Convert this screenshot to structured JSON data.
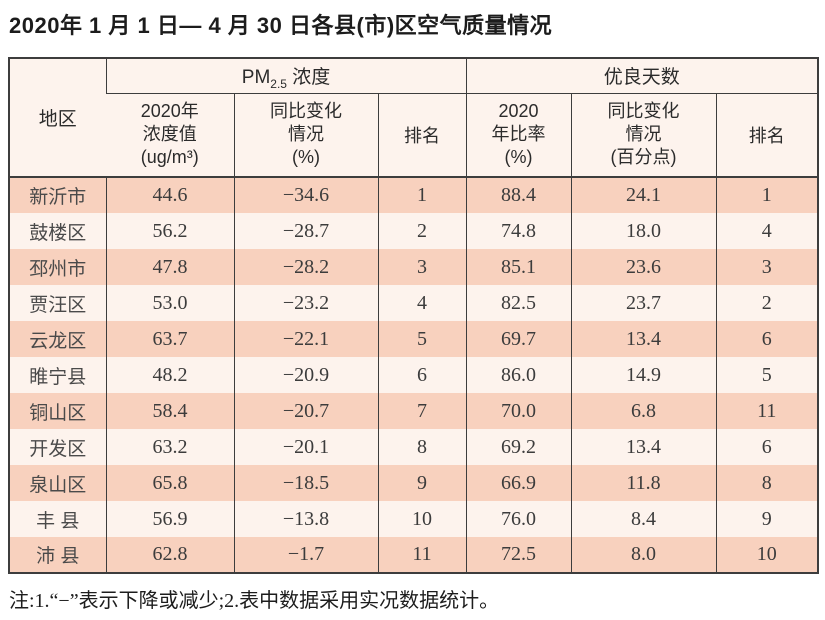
{
  "title": "2020年 1 月 1 日— 4 月 30 日各县(市)区空气质量情况",
  "note": "注:1.“−”表示下降或减少;2.表中数据采用实况数据统计。",
  "colors": {
    "row_salmon": "#f8d1be",
    "row_cream": "#fdf3ed",
    "border_dark": "#3d3d3d"
  },
  "table": {
    "region_header": "地区",
    "pm_group": {
      "main": "PM",
      "sub": "2.5",
      "rest": " 浓度"
    },
    "days_group_label": "优良天数",
    "pm_value_header": "2020年\n浓度值\n(ug/m³)",
    "pm_change_header": "同比变化\n情况\n(%)",
    "pm_rank_header": "排名",
    "days_rate_header": "2020\n年比率\n(%)",
    "days_change_header": "同比变化\n情况\n(百分点)",
    "days_rank_header": "排名",
    "rows": [
      {
        "region": "新沂市",
        "pm_value": "44.6",
        "pm_change": "−34.6",
        "pm_rank": "1",
        "days_rate": "88.4",
        "days_change": "24.1",
        "days_rank": "1"
      },
      {
        "region": "鼓楼区",
        "pm_value": "56.2",
        "pm_change": "−28.7",
        "pm_rank": "2",
        "days_rate": "74.8",
        "days_change": "18.0",
        "days_rank": "4"
      },
      {
        "region": "邳州市",
        "pm_value": "47.8",
        "pm_change": "−28.2",
        "pm_rank": "3",
        "days_rate": "85.1",
        "days_change": "23.6",
        "days_rank": "3"
      },
      {
        "region": "贾汪区",
        "pm_value": "53.0",
        "pm_change": "−23.2",
        "pm_rank": "4",
        "days_rate": "82.5",
        "days_change": "23.7",
        "days_rank": "2"
      },
      {
        "region": "云龙区",
        "pm_value": "63.7",
        "pm_change": "−22.1",
        "pm_rank": "5",
        "days_rate": "69.7",
        "days_change": "13.4",
        "days_rank": "6"
      },
      {
        "region": "睢宁县",
        "pm_value": "48.2",
        "pm_change": "−20.9",
        "pm_rank": "6",
        "days_rate": "86.0",
        "days_change": "14.9",
        "days_rank": "5"
      },
      {
        "region": "铜山区",
        "pm_value": "58.4",
        "pm_change": "−20.7",
        "pm_rank": "7",
        "days_rate": "70.0",
        "days_change": "6.8",
        "days_rank": "11"
      },
      {
        "region": "开发区",
        "pm_value": "63.2",
        "pm_change": "−20.1",
        "pm_rank": "8",
        "days_rate": "69.2",
        "days_change": "13.4",
        "days_rank": "6"
      },
      {
        "region": "泉山区",
        "pm_value": "65.8",
        "pm_change": "−18.5",
        "pm_rank": "9",
        "days_rate": "66.9",
        "days_change": "11.8",
        "days_rank": "8"
      },
      {
        "region": "丰 县",
        "pm_value": "56.9",
        "pm_change": "−13.8",
        "pm_rank": "10",
        "days_rate": "76.0",
        "days_change": "8.4",
        "days_rank": "9"
      },
      {
        "region": "沛 县",
        "pm_value": "62.8",
        "pm_change": "−1.7",
        "pm_rank": "11",
        "days_rate": "72.5",
        "days_change": "8.0",
        "days_rank": "10"
      }
    ]
  }
}
